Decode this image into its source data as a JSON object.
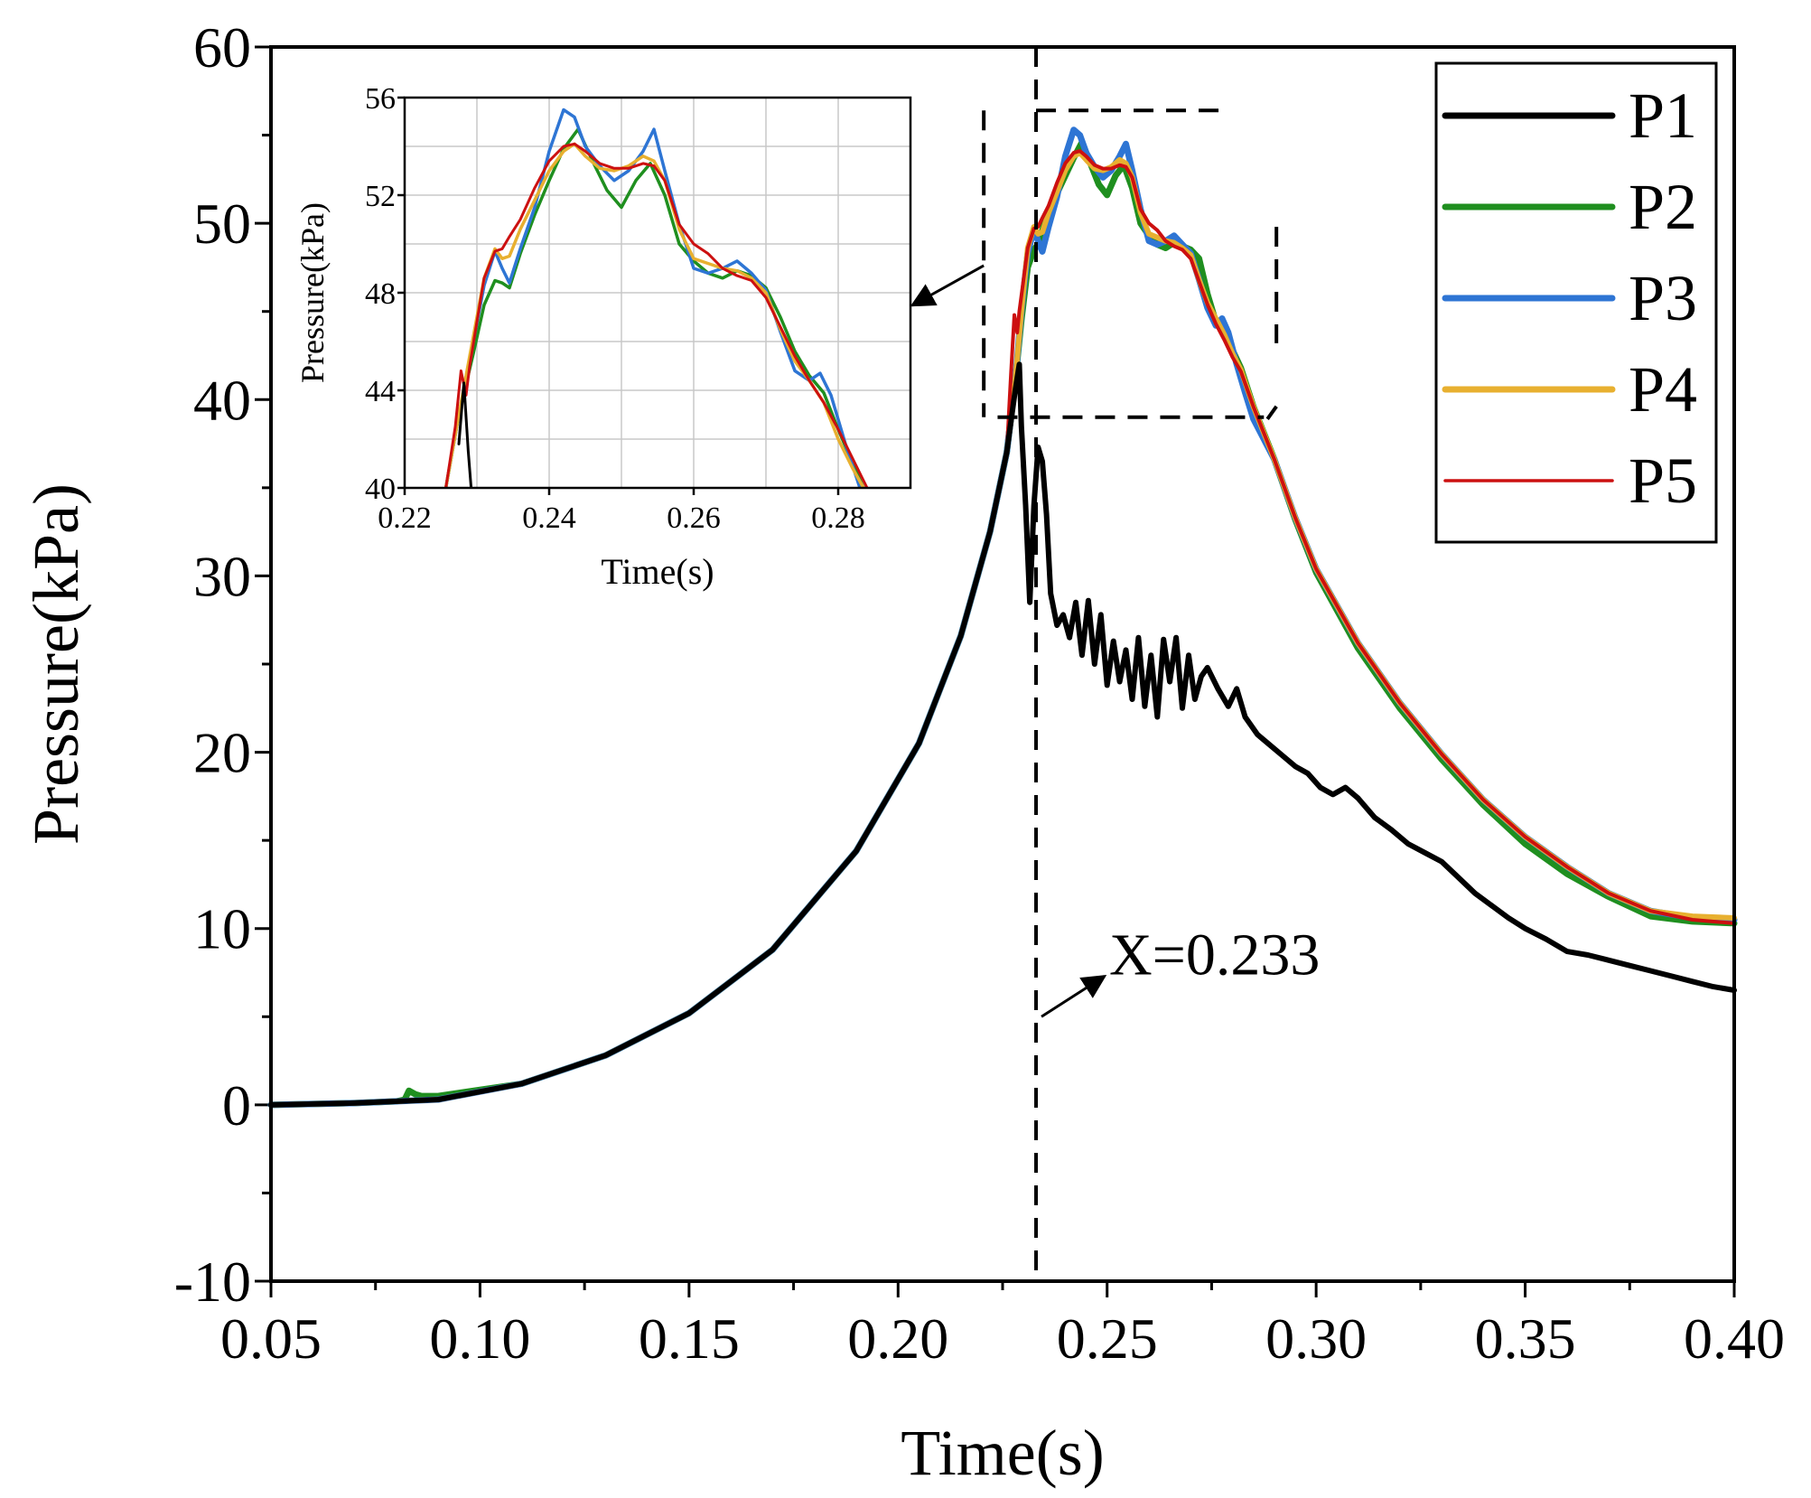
{
  "chart_data": [
    {
      "id": "main",
      "type": "line",
      "title": "",
      "xlabel": "Time(s)",
      "ylabel": "Pressure(kPa)",
      "xlim": [
        0.05,
        0.4
      ],
      "ylim": [
        -10,
        60
      ],
      "x_ticks": [
        0.05,
        0.1,
        0.15,
        0.2,
        0.25,
        0.3,
        0.35,
        0.4
      ],
      "x_tick_labels": [
        "0.05",
        "0.10",
        "0.15",
        "0.20",
        "0.25",
        "0.30",
        "0.35",
        "0.40"
      ],
      "y_ticks": [
        -10,
        0,
        10,
        20,
        30,
        40,
        50,
        60
      ],
      "y_tick_labels": [
        "-10",
        "0",
        "10",
        "20",
        "30",
        "40",
        "50",
        "60"
      ],
      "grid": false,
      "legend_position": "top-right",
      "series": [
        {
          "name": "P1",
          "color": "#000000",
          "x": [
            0.05,
            0.07,
            0.09,
            0.11,
            0.13,
            0.15,
            0.17,
            0.19,
            0.205,
            0.215,
            0.222,
            0.226,
            0.228,
            0.229,
            0.2295,
            0.2305,
            0.2315,
            0.2325,
            0.2335,
            0.2345,
            0.2355,
            0.2365,
            0.238,
            0.2395,
            0.241,
            0.2425,
            0.244,
            0.2455,
            0.247,
            0.2485,
            0.25,
            0.2515,
            0.253,
            0.2545,
            0.256,
            0.2575,
            0.259,
            0.2605,
            0.262,
            0.2635,
            0.265,
            0.2665,
            0.268,
            0.2695,
            0.271,
            0.2725,
            0.274,
            0.2765,
            0.279,
            0.281,
            0.283,
            0.286,
            0.289,
            0.292,
            0.295,
            0.298,
            0.301,
            0.304,
            0.307,
            0.31,
            0.314,
            0.318,
            0.322,
            0.326,
            0.33,
            0.334,
            0.338,
            0.342,
            0.346,
            0.35,
            0.355,
            0.36,
            0.365,
            0.37,
            0.375,
            0.38,
            0.385,
            0.39,
            0.395,
            0.4
          ],
          "y": [
            0,
            0.1,
            0.3,
            1.2,
            2.8,
            5.2,
            8.8,
            14.4,
            20.5,
            26.6,
            32.5,
            37.0,
            40.5,
            42.0,
            38.5,
            34.0,
            28.5,
            34.0,
            37.3,
            36.5,
            33.5,
            29.0,
            27.2,
            27.8,
            26.5,
            28.5,
            25.5,
            28.6,
            25.0,
            27.8,
            23.8,
            26.3,
            24.0,
            25.8,
            23.0,
            26.5,
            22.6,
            25.5,
            22.0,
            26.4,
            24.0,
            26.5,
            22.5,
            25.5,
            23.0,
            24.3,
            24.8,
            23.6,
            22.6,
            23.6,
            22.0,
            21.0,
            20.4,
            19.8,
            19.2,
            18.8,
            18.0,
            17.6,
            18.0,
            17.4,
            16.3,
            15.6,
            14.8,
            14.3,
            13.8,
            12.9,
            12.0,
            11.3,
            10.6,
            10.0,
            9.4,
            8.7,
            8.5,
            8.2,
            7.9,
            7.6,
            7.3,
            7.0,
            6.7,
            6.5
          ]
        },
        {
          "name": "P2",
          "color": "#1f8f1f",
          "x": [
            0.05,
            0.07,
            0.08,
            0.082,
            0.083,
            0.0845,
            0.086,
            0.09,
            0.11,
            0.13,
            0.15,
            0.17,
            0.19,
            0.205,
            0.215,
            0.222,
            0.226,
            0.228,
            0.2295,
            0.231,
            0.2325,
            0.2335,
            0.2345,
            0.236,
            0.238,
            0.24,
            0.242,
            0.244,
            0.246,
            0.248,
            0.25,
            0.252,
            0.254,
            0.256,
            0.258,
            0.26,
            0.262,
            0.264,
            0.266,
            0.268,
            0.27,
            0.272,
            0.274,
            0.276,
            0.278,
            0.28,
            0.282,
            0.285,
            0.29,
            0.295,
            0.3,
            0.31,
            0.32,
            0.33,
            0.34,
            0.35,
            0.36,
            0.37,
            0.38,
            0.39,
            0.4
          ],
          "y": [
            0,
            0.1,
            0.2,
            0.3,
            0.8,
            0.6,
            0.5,
            0.5,
            1.2,
            2.8,
            5.2,
            8.8,
            14.4,
            20.5,
            26.6,
            32.5,
            37.0,
            41.0,
            44.5,
            47.5,
            48.5,
            48.8,
            49.6,
            50.8,
            51.7,
            52.7,
            53.7,
            54.6,
            53.4,
            52.2,
            51.6,
            52.7,
            53.3,
            52.0,
            50.0,
            49.3,
            48.8,
            48.6,
            48.9,
            48.7,
            48.5,
            48.0,
            46.0,
            44.4,
            44.0,
            42.8,
            41.8,
            39.6,
            36.6,
            33.2,
            30.2,
            25.9,
            22.5,
            19.6,
            17.0,
            14.8,
            13.1,
            11.8,
            10.7,
            10.4,
            10.3
          ]
        },
        {
          "name": "P3",
          "color": "#2e75d4",
          "x": [
            0.05,
            0.07,
            0.09,
            0.11,
            0.13,
            0.15,
            0.17,
            0.19,
            0.205,
            0.215,
            0.222,
            0.226,
            0.228,
            0.2295,
            0.231,
            0.2325,
            0.2335,
            0.2345,
            0.236,
            0.238,
            0.24,
            0.242,
            0.2435,
            0.245,
            0.247,
            0.249,
            0.251,
            0.253,
            0.2545,
            0.256,
            0.258,
            0.26,
            0.262,
            0.264,
            0.266,
            0.268,
            0.27,
            0.272,
            0.274,
            0.276,
            0.2775,
            0.279,
            0.281,
            0.283,
            0.285,
            0.29,
            0.295,
            0.3,
            0.31,
            0.32,
            0.33,
            0.34,
            0.35,
            0.36,
            0.37,
            0.38,
            0.39,
            0.4
          ],
          "y": [
            0,
            0.1,
            0.3,
            1.2,
            2.8,
            5.2,
            8.8,
            14.4,
            20.5,
            26.6,
            32.5,
            37.0,
            41.0,
            45.0,
            48.3,
            49.7,
            49.0,
            48.4,
            49.8,
            51.5,
            53.8,
            55.3,
            55.0,
            54.0,
            53.2,
            52.6,
            53.0,
            53.8,
            54.5,
            53.0,
            50.8,
            49.0,
            48.8,
            49.0,
            49.3,
            48.8,
            48.3,
            46.8,
            45.2,
            44.2,
            44.6,
            43.8,
            42.0,
            40.4,
            38.9,
            36.6,
            33.3,
            30.4,
            26.2,
            22.8,
            19.9,
            17.3,
            15.2,
            13.5,
            12.0,
            11.0,
            10.6,
            10.5
          ]
        },
        {
          "name": "P4",
          "color": "#e8b030",
          "x": [
            0.05,
            0.07,
            0.09,
            0.11,
            0.13,
            0.15,
            0.17,
            0.19,
            0.205,
            0.215,
            0.222,
            0.226,
            0.228,
            0.2295,
            0.231,
            0.2325,
            0.2335,
            0.2345,
            0.236,
            0.238,
            0.24,
            0.242,
            0.2435,
            0.245,
            0.247,
            0.249,
            0.251,
            0.253,
            0.2545,
            0.256,
            0.258,
            0.26,
            0.262,
            0.264,
            0.266,
            0.268,
            0.27,
            0.272,
            0.274,
            0.276,
            0.278,
            0.28,
            0.282,
            0.285,
            0.29,
            0.295,
            0.3,
            0.31,
            0.32,
            0.33,
            0.34,
            0.35,
            0.36,
            0.37,
            0.38,
            0.39,
            0.4
          ],
          "y": [
            0,
            0.1,
            0.3,
            1.2,
            2.8,
            5.2,
            8.8,
            14.4,
            20.5,
            26.6,
            32.5,
            37.0,
            41.0,
            45.0,
            48.6,
            49.8,
            49.4,
            49.5,
            50.6,
            51.8,
            53.0,
            53.8,
            54.0,
            53.6,
            53.1,
            53.0,
            53.2,
            53.6,
            53.4,
            52.6,
            50.6,
            49.4,
            49.2,
            49.0,
            48.9,
            48.6,
            48.2,
            46.8,
            45.5,
            44.6,
            43.7,
            42.6,
            41.7,
            39.6,
            36.6,
            33.3,
            30.4,
            26.2,
            22.8,
            19.9,
            17.3,
            15.2,
            13.5,
            12.0,
            11.0,
            10.7,
            10.6
          ]
        },
        {
          "name": "P5",
          "color": "#cc1010",
          "x": [
            0.05,
            0.07,
            0.09,
            0.11,
            0.13,
            0.15,
            0.17,
            0.19,
            0.205,
            0.215,
            0.222,
            0.226,
            0.227,
            0.2278,
            0.2285,
            0.229,
            0.231,
            0.2325,
            0.2335,
            0.2345,
            0.236,
            0.238,
            0.24,
            0.242,
            0.2435,
            0.245,
            0.247,
            0.249,
            0.251,
            0.253,
            0.2545,
            0.256,
            0.258,
            0.26,
            0.262,
            0.264,
            0.266,
            0.268,
            0.27,
            0.272,
            0.274,
            0.276,
            0.278,
            0.28,
            0.282,
            0.285,
            0.29,
            0.295,
            0.3,
            0.31,
            0.32,
            0.33,
            0.34,
            0.35,
            0.36,
            0.37,
            0.38,
            0.39,
            0.4
          ],
          "y": [
            0,
            0.1,
            0.3,
            1.2,
            2.8,
            5.2,
            8.8,
            14.4,
            20.5,
            26.6,
            32.5,
            37.0,
            41.5,
            44.8,
            43.8,
            45.0,
            48.6,
            49.7,
            49.8,
            50.3,
            51.0,
            52.3,
            53.4,
            54.0,
            54.1,
            53.8,
            53.3,
            53.1,
            53.1,
            53.3,
            53.2,
            52.6,
            50.8,
            50.0,
            49.6,
            49.0,
            48.7,
            48.5,
            48.0,
            46.7,
            45.4,
            44.3,
            43.4,
            42.4,
            41.6,
            39.6,
            36.6,
            33.3,
            30.4,
            26.2,
            22.8,
            19.9,
            17.3,
            15.2,
            13.5,
            12.0,
            11.0,
            10.5,
            10.3
          ]
        }
      ],
      "annotations": [
        {
          "id": "vline",
          "text": "X=0.233",
          "x": 0.233
        }
      ]
    },
    {
      "id": "inset",
      "type": "line",
      "title": "",
      "xlabel": "Time(s)",
      "ylabel": "Pressure(kPa)",
      "xlim": [
        0.22,
        0.29
      ],
      "ylim": [
        40,
        56
      ],
      "x_ticks": [
        0.22,
        0.24,
        0.26,
        0.28
      ],
      "x_tick_labels": [
        "0.22",
        "0.24",
        "0.26",
        "0.28"
      ],
      "y_ticks": [
        40,
        44,
        48,
        52,
        56
      ],
      "y_tick_labels": [
        "40",
        "44",
        "48",
        "52",
        "56"
      ],
      "grid": true,
      "series": [
        {
          "name": "P1",
          "color": "#000000",
          "x": [
            0.2275,
            0.2282,
            0.2288,
            0.2292
          ],
          "y": [
            41.8,
            44.3,
            41.5,
            40.0
          ]
        },
        {
          "name": "P2",
          "color": "#1f8f1f",
          "x": [
            0.2257,
            0.2275,
            0.2295,
            0.231,
            0.2325,
            0.2335,
            0.2345,
            0.236,
            0.238,
            0.24,
            0.242,
            0.244,
            0.246,
            0.248,
            0.25,
            0.252,
            0.254,
            0.256,
            0.258,
            0.26,
            0.262,
            0.264,
            0.266,
            0.268,
            0.27,
            0.272,
            0.274,
            0.276,
            0.278,
            0.28,
            0.282,
            0.2835
          ],
          "y": [
            40.0,
            43.0,
            45.5,
            47.5,
            48.5,
            48.4,
            48.2,
            49.6,
            51.2,
            52.6,
            53.9,
            54.7,
            53.4,
            52.2,
            51.5,
            52.6,
            53.3,
            52.0,
            50.0,
            49.3,
            48.8,
            48.6,
            48.9,
            48.7,
            48.2,
            47.0,
            45.6,
            44.6,
            43.9,
            42.4,
            41.0,
            40.0
          ]
        },
        {
          "name": "P3",
          "color": "#2e75d4",
          "x": [
            0.2257,
            0.2275,
            0.2295,
            0.231,
            0.2325,
            0.2335,
            0.2345,
            0.236,
            0.238,
            0.24,
            0.242,
            0.2435,
            0.245,
            0.247,
            0.249,
            0.251,
            0.253,
            0.2545,
            0.256,
            0.258,
            0.26,
            0.262,
            0.264,
            0.266,
            0.268,
            0.27,
            0.272,
            0.274,
            0.276,
            0.2775,
            0.279,
            0.281,
            0.283
          ],
          "y": [
            40.0,
            43.0,
            46.0,
            48.3,
            49.7,
            49.0,
            48.4,
            49.8,
            51.5,
            53.8,
            55.5,
            55.2,
            54.0,
            53.2,
            52.6,
            53.0,
            53.8,
            54.7,
            53.0,
            50.8,
            49.0,
            48.8,
            49.0,
            49.3,
            48.8,
            48.1,
            46.4,
            44.8,
            44.4,
            44.7,
            43.8,
            41.8,
            40.0
          ]
        },
        {
          "name": "P4",
          "color": "#e8b030",
          "x": [
            0.2257,
            0.2275,
            0.2295,
            0.231,
            0.2325,
            0.2335,
            0.2345,
            0.236,
            0.238,
            0.24,
            0.242,
            0.2435,
            0.245,
            0.247,
            0.249,
            0.251,
            0.253,
            0.2545,
            0.256,
            0.258,
            0.26,
            0.262,
            0.264,
            0.266,
            0.268,
            0.27,
            0.272,
            0.274,
            0.276,
            0.278,
            0.28,
            0.282,
            0.2835
          ],
          "y": [
            40.0,
            43.0,
            46.2,
            48.6,
            49.8,
            49.4,
            49.5,
            50.6,
            51.8,
            53.0,
            53.8,
            54.1,
            53.6,
            53.1,
            53.0,
            53.2,
            53.6,
            53.4,
            52.6,
            50.6,
            49.4,
            49.2,
            49.0,
            48.9,
            48.6,
            48.0,
            46.5,
            45.2,
            44.4,
            43.5,
            42.0,
            40.8,
            40.0
          ]
        },
        {
          "name": "P5",
          "color": "#cc1010",
          "x": [
            0.2257,
            0.227,
            0.2278,
            0.2285,
            0.229,
            0.231,
            0.2325,
            0.2335,
            0.2345,
            0.236,
            0.238,
            0.24,
            0.242,
            0.2435,
            0.245,
            0.247,
            0.249,
            0.251,
            0.253,
            0.2545,
            0.256,
            0.258,
            0.26,
            0.262,
            0.264,
            0.266,
            0.268,
            0.27,
            0.272,
            0.274,
            0.276,
            0.278,
            0.28,
            0.282,
            0.284
          ],
          "y": [
            40.0,
            42.5,
            44.8,
            43.8,
            45.0,
            48.6,
            49.7,
            49.8,
            50.3,
            51.0,
            52.3,
            53.4,
            54.0,
            54.1,
            53.8,
            53.3,
            53.1,
            53.1,
            53.3,
            53.2,
            52.6,
            50.8,
            50.0,
            49.6,
            49.0,
            48.7,
            48.5,
            47.8,
            46.6,
            45.4,
            44.4,
            43.5,
            42.4,
            41.2,
            40.0
          ]
        }
      ]
    }
  ]
}
